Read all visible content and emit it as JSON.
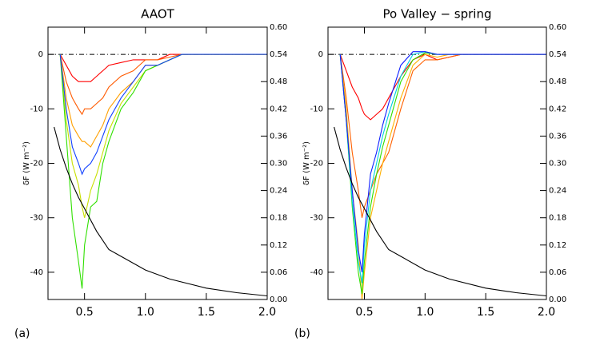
{
  "chart_data": [
    {
      "type": "line",
      "title": "AAOT",
      "panel_label": "(a)",
      "ylabel": "δF (W m⁻²)",
      "x": [
        0.3,
        0.35,
        0.4,
        0.45,
        0.48,
        0.5,
        0.55,
        0.6,
        0.65,
        0.7,
        0.8,
        0.9,
        1.0,
        1.1,
        1.2,
        1.3,
        1.4,
        1.5,
        1.75,
        2.0
      ],
      "xlim": [
        0.2,
        2.0
      ],
      "xticks": [
        0.5,
        {
          "value": 1.0,
          "label": "1.0"
        },
        1.5,
        {
          "value": 2.0,
          "label": "2.0"
        }
      ],
      "ylim": [
        -45,
        5
      ],
      "yticks": [
        0,
        -10,
        -20,
        -30,
        -40
      ],
      "y2lim": [
        0,
        0.6
      ],
      "y2ticks": [
        {
          "value": 0,
          "label": "0.00"
        },
        0.06,
        0.12,
        0.18,
        0.24,
        {
          "value": 0.3,
          "label": "0.30"
        },
        0.36,
        0.42,
        0.48,
        0.54,
        {
          "value": 0.6,
          "label": "0.60"
        }
      ],
      "series": [
        {
          "color": "#ff0000",
          "values": [
            0,
            -2,
            -4,
            -5,
            -5,
            -5,
            -5,
            -4,
            -3,
            -2,
            -1.5,
            -1,
            -1,
            -1,
            0,
            0,
            0,
            0,
            0,
            0
          ]
        },
        {
          "color": "#ff5a00",
          "values": [
            0,
            -5,
            -8,
            -10,
            -11,
            -10,
            -10,
            -9,
            -8,
            -6,
            -4,
            -3,
            -1,
            -1,
            -0.5,
            0,
            0,
            0,
            0,
            0
          ]
        },
        {
          "color": "#ffa000",
          "values": [
            0,
            -8,
            -13,
            -15,
            -16,
            -16,
            -17,
            -15,
            -13,
            -10,
            -7,
            -5,
            -2,
            -2,
            -1,
            0,
            0,
            0,
            0,
            0
          ]
        },
        {
          "color": "#c8e000",
          "values": [
            0,
            -12,
            -20,
            -24,
            -28,
            -30,
            -25,
            -22,
            -18,
            -14,
            -9,
            -6,
            -3,
            -2,
            -1,
            0,
            0,
            0,
            0,
            0
          ]
        },
        {
          "color": "#30e000",
          "values": [
            0,
            -15,
            -30,
            -38,
            -43,
            -35,
            -28,
            -27,
            -20,
            -16,
            -10,
            -7,
            -3,
            -2,
            -1,
            0,
            0,
            0,
            0,
            0
          ]
        },
        {
          "color": "#1040ff",
          "values": [
            0,
            -10,
            -17,
            -20,
            -22,
            -21,
            -20,
            -18,
            -15,
            -12,
            -8,
            -5,
            -2,
            -2,
            -1,
            0,
            0,
            0,
            0,
            0
          ]
        },
        {
          "color": "#000000",
          "axis": "y2",
          "x": [
            0.25,
            0.3,
            0.35,
            0.4,
            0.45,
            0.5,
            0.6,
            0.7,
            0.8,
            1.0,
            1.2,
            1.5,
            1.75,
            2.0
          ],
          "values": [
            0.38,
            0.33,
            0.29,
            0.255,
            0.225,
            0.2,
            0.15,
            0.11,
            0.095,
            0.065,
            0.045,
            0.025,
            0.015,
            0.008
          ]
        }
      ]
    },
    {
      "type": "line",
      "title": "Po Valley − spring",
      "panel_label": "(b)",
      "ylabel": "δF (W m⁻²)",
      "x": [
        0.3,
        0.35,
        0.4,
        0.45,
        0.48,
        0.5,
        0.55,
        0.6,
        0.65,
        0.7,
        0.8,
        0.9,
        1.0,
        1.1,
        1.2,
        1.3,
        1.4,
        1.5,
        1.75,
        2.0
      ],
      "xlim": [
        0.2,
        2.0
      ],
      "xticks": [
        0.5,
        {
          "value": 1.0,
          "label": "1.0"
        },
        1.5,
        {
          "value": 2.0,
          "label": "2.0"
        }
      ],
      "ylim": [
        -45,
        5
      ],
      "yticks": [
        0,
        -10,
        -20,
        -30,
        -40
      ],
      "y2lim": [
        0,
        0.6
      ],
      "y2ticks": [
        {
          "value": 0,
          "label": "0.00"
        },
        0.06,
        0.12,
        0.18,
        0.24,
        {
          "value": 0.3,
          "label": "0.30"
        },
        0.36,
        0.42,
        0.48,
        0.54,
        {
          "value": 0.6,
          "label": "0.60"
        }
      ],
      "series": [
        {
          "color": "#ff0000",
          "values": [
            0,
            -3,
            -6,
            -8,
            -10,
            -11,
            -12,
            -11,
            -10,
            -8,
            -4,
            -1,
            0,
            -1,
            -0.5,
            0,
            0,
            0,
            0,
            0
          ]
        },
        {
          "color": "#ff6000",
          "values": [
            0,
            -8,
            -18,
            -25,
            -30,
            -28,
            -25,
            -22,
            -20,
            -18,
            -10,
            -3,
            -1,
            -1,
            -0.5,
            0,
            0,
            0,
            0,
            0
          ]
        },
        {
          "color": "#ffb000",
          "values": [
            0,
            -10,
            -25,
            -35,
            -45,
            -40,
            -30,
            -25,
            -20,
            -16,
            -8,
            -2,
            0,
            -0.5,
            0,
            0,
            0,
            0,
            0,
            0
          ]
        },
        {
          "color": "#30e000",
          "values": [
            0,
            -12,
            -28,
            -40,
            -44,
            -38,
            -28,
            -22,
            -17,
            -13,
            -5,
            -1,
            0.3,
            0,
            0,
            0,
            0,
            0,
            0,
            0
          ]
        },
        {
          "color": "#00d0e0",
          "values": [
            0,
            -12,
            -27,
            -38,
            -42,
            -35,
            -25,
            -20,
            -15,
            -11,
            -4,
            0,
            0.5,
            0,
            0,
            0,
            0,
            0,
            0,
            0
          ]
        },
        {
          "color": "#1020ff",
          "values": [
            0,
            -12,
            -25,
            -36,
            -40,
            -33,
            -22,
            -18,
            -13,
            -9,
            -2,
            0.5,
            0.5,
            0,
            0,
            0,
            0,
            0,
            0,
            0
          ]
        },
        {
          "color": "#000000",
          "axis": "y2",
          "x": [
            0.25,
            0.3,
            0.35,
            0.4,
            0.45,
            0.5,
            0.6,
            0.7,
            0.8,
            1.0,
            1.2,
            1.5,
            1.75,
            2.0
          ],
          "values": [
            0.38,
            0.33,
            0.29,
            0.255,
            0.225,
            0.2,
            0.15,
            0.11,
            0.095,
            0.065,
            0.045,
            0.025,
            0.015,
            0.008
          ]
        }
      ]
    }
  ]
}
